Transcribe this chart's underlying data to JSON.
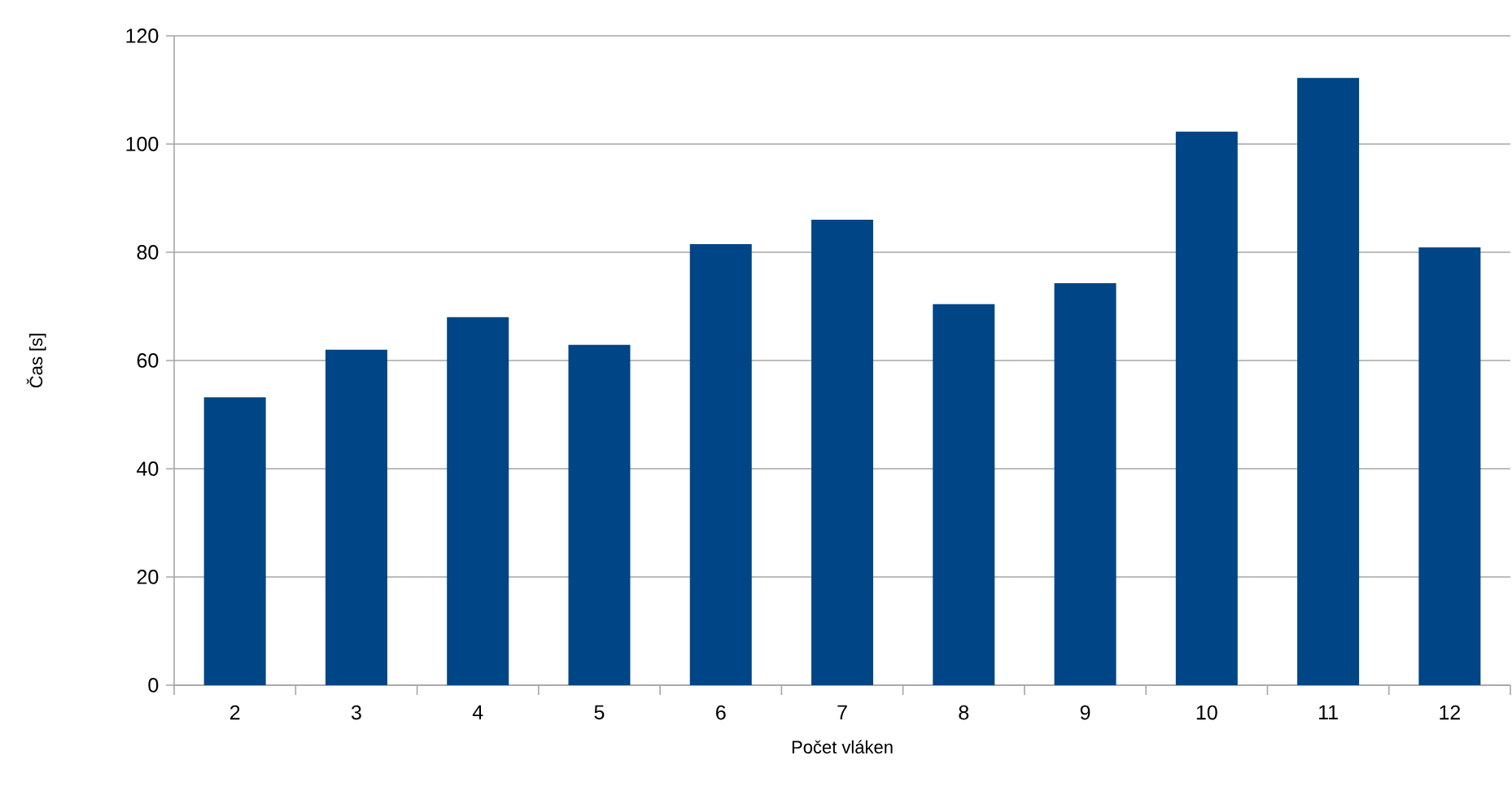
{
  "chart_data": {
    "type": "bar",
    "xlabel": "Počet vláken",
    "ylabel": "Čas [s]",
    "categories": [
      "2",
      "3",
      "4",
      "5",
      "6",
      "7",
      "8",
      "9",
      "10",
      "11",
      "12"
    ],
    "values": [
      53.2,
      62.0,
      68.0,
      62.9,
      81.5,
      86.0,
      70.4,
      74.3,
      102.3,
      112.2,
      80.9
    ],
    "color": "#004586",
    "ylim": [
      0,
      120
    ],
    "yticks": [
      0,
      20,
      40,
      60,
      80,
      100,
      120
    ],
    "grid": "y"
  }
}
